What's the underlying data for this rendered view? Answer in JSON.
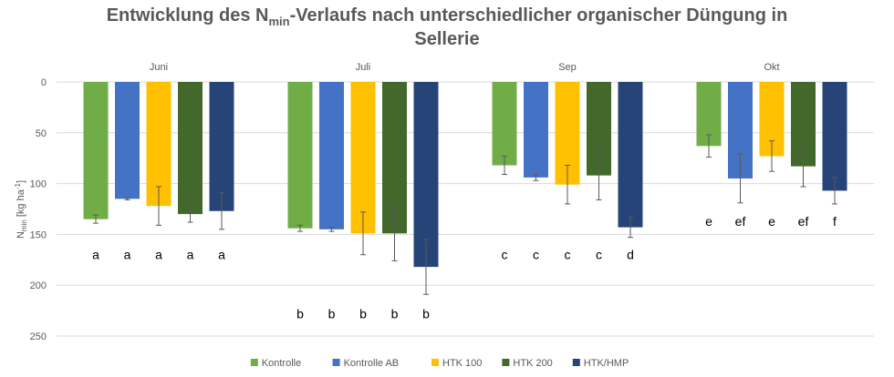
{
  "chart_data": {
    "type": "bar",
    "title": {
      "prefix": "Entwicklung des N",
      "subscript": "min",
      "suffix": "-Verlaufs nach unterschiedlicher organischer Düngung in",
      "line2": "Sellerie"
    },
    "ylabel": {
      "base": "N",
      "sub": "min",
      "mid": " [kg ha",
      "sup": "-1",
      "end": "]"
    },
    "y_axis_inverted": true,
    "ylim": [
      0,
      250
    ],
    "yticks": [
      "0",
      "50",
      "100",
      "150",
      "200",
      "250"
    ],
    "ytick_values": [
      0,
      50,
      100,
      150,
      200,
      250
    ],
    "gridlines": true,
    "legend_position": "bottom",
    "categories": [
      "Juni",
      "Juli",
      "Sep",
      "Okt"
    ],
    "series": [
      {
        "name": "Kontrolle",
        "color": "#70AD47",
        "values": [
          135,
          144,
          82,
          63
        ],
        "errors": [
          4,
          3,
          9,
          11
        ],
        "labels": [
          "a",
          "b",
          "c",
          "e"
        ]
      },
      {
        "name": "Kontrolle AB",
        "color": "#4472C4",
        "values": [
          115,
          145,
          94,
          95
        ],
        "errors": [
          1,
          2,
          3,
          24
        ],
        "labels": [
          "a",
          "b",
          "c",
          "ef"
        ]
      },
      {
        "name": "HTK 100",
        "color": "#FFC000",
        "values": [
          122,
          149,
          101,
          73
        ],
        "errors": [
          19,
          21,
          19,
          15
        ],
        "labels": [
          "a",
          "b",
          "c",
          "e"
        ]
      },
      {
        "name": "HTK 200",
        "color": "#43682B",
        "values": [
          130,
          149,
          92,
          83
        ],
        "errors": [
          8,
          27,
          24,
          20
        ],
        "labels": [
          "a",
          "b",
          "c",
          "ef"
        ]
      },
      {
        "name": "HTK/HMP",
        "color": "#264478",
        "values": [
          127,
          182,
          143,
          107
        ],
        "errors": [
          18,
          27,
          10,
          13
        ],
        "labels": [
          "a",
          "b",
          "d",
          "f"
        ]
      }
    ],
    "label_y_by_category": [
      170,
      228,
      170,
      137
    ]
  }
}
